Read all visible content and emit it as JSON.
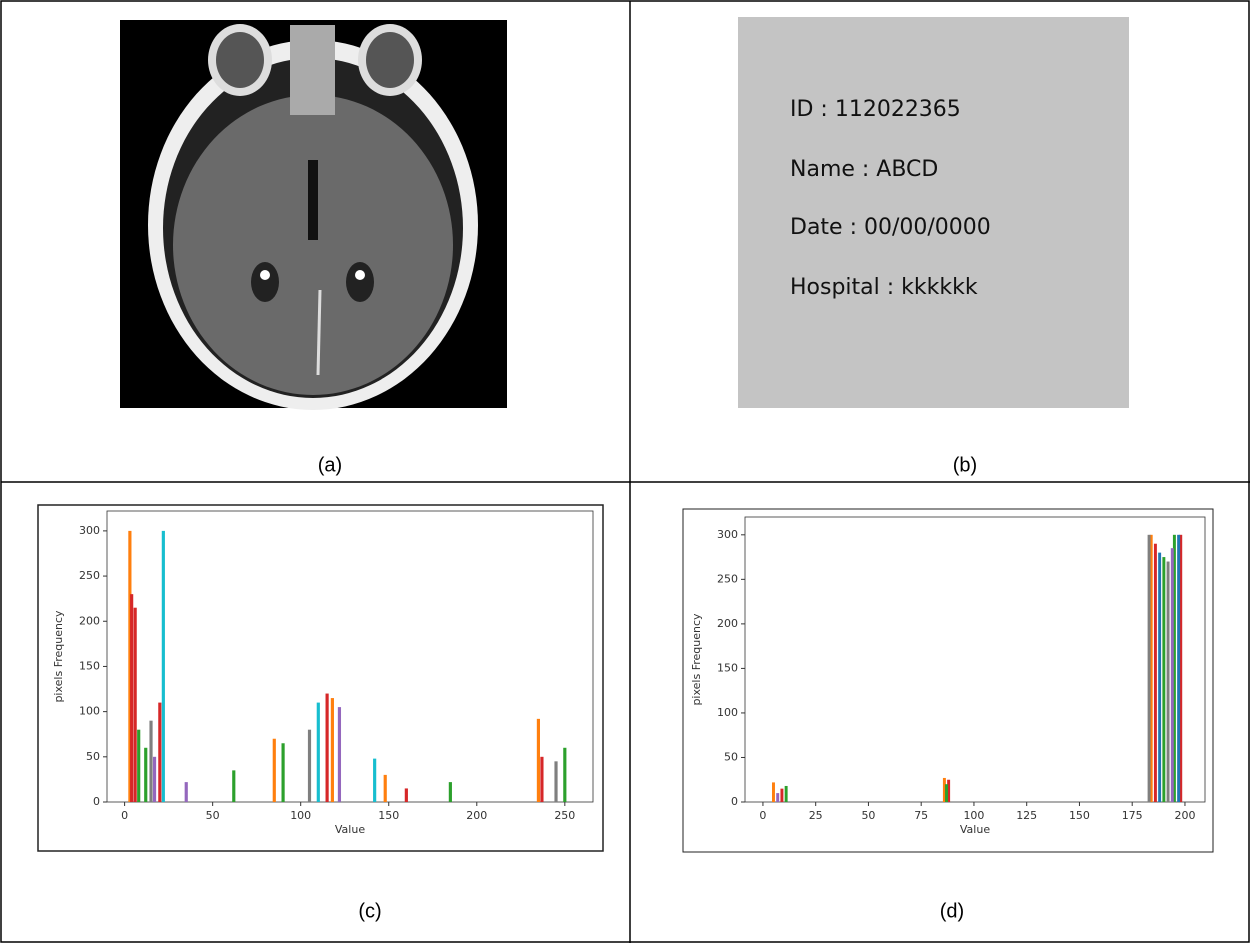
{
  "captions": [
    "(a)",
    "(b)",
    "(c)",
    "(d)"
  ],
  "image_text": [
    "ID : 112022365",
    "Name : ABCD",
    "Date : 00/00/0000",
    "Hospital : kkkkkk"
  ],
  "chart_data": [
    {
      "type": "bar",
      "x_label": "Value",
      "y_label": "pixels Frequency",
      "xlim": [
        -10,
        266
      ],
      "ylim": [
        0,
        322
      ],
      "xticks": [
        0,
        50,
        100,
        150,
        200,
        250
      ],
      "yticks": [
        0,
        50,
        100,
        150,
        200,
        250,
        300
      ],
      "series": [
        {
          "color": "#ff7f0e",
          "x": [
            3,
            85,
            118,
            235,
            148
          ],
          "values": [
            300,
            70,
            115,
            92,
            30
          ]
        },
        {
          "color": "#d62728",
          "x": [
            4,
            6,
            20,
            115,
            237,
            160
          ],
          "values": [
            230,
            215,
            110,
            120,
            50,
            15
          ]
        },
        {
          "color": "#17becf",
          "x": [
            22,
            110,
            142
          ],
          "values": [
            300,
            110,
            48
          ]
        },
        {
          "color": "#2ca02c",
          "x": [
            8,
            12,
            90,
            62,
            250,
            185
          ],
          "values": [
            80,
            60,
            65,
            35,
            60,
            22
          ]
        },
        {
          "color": "#7f7f7f",
          "x": [
            15,
            105,
            245
          ],
          "values": [
            90,
            80,
            45
          ]
        },
        {
          "color": "#9467bd",
          "x": [
            17,
            122,
            35
          ],
          "values": [
            50,
            105,
            22
          ]
        }
      ]
    },
    {
      "type": "bar",
      "x_label": "Value",
      "y_label": "pixels Frequency",
      "xlim": [
        -8.5,
        209.5
      ],
      "ylim": [
        0,
        320
      ],
      "xticks": [
        0,
        25,
        50,
        75,
        100,
        125,
        150,
        175,
        200
      ],
      "yticks": [
        0,
        50,
        100,
        150,
        200,
        250,
        300
      ],
      "series": [
        {
          "color": "#ff7f0e",
          "x": [
            5,
            86,
            184
          ],
          "values": [
            22,
            27,
            300
          ]
        },
        {
          "color": "#d62728",
          "x": [
            9,
            88,
            186,
            198
          ],
          "values": [
            15,
            25,
            290,
            300
          ]
        },
        {
          "color": "#2ca02c",
          "x": [
            11,
            87,
            190,
            195
          ],
          "values": [
            18,
            20,
            275,
            300
          ]
        },
        {
          "color": "#7f7f7f",
          "x": [
            183,
            192
          ],
          "values": [
            300,
            270
          ]
        },
        {
          "color": "#1f77b4",
          "x": [
            188,
            197
          ],
          "values": [
            280,
            300
          ]
        },
        {
          "color": "#9467bd",
          "x": [
            7,
            194
          ],
          "values": [
            10,
            285
          ]
        }
      ]
    }
  ]
}
